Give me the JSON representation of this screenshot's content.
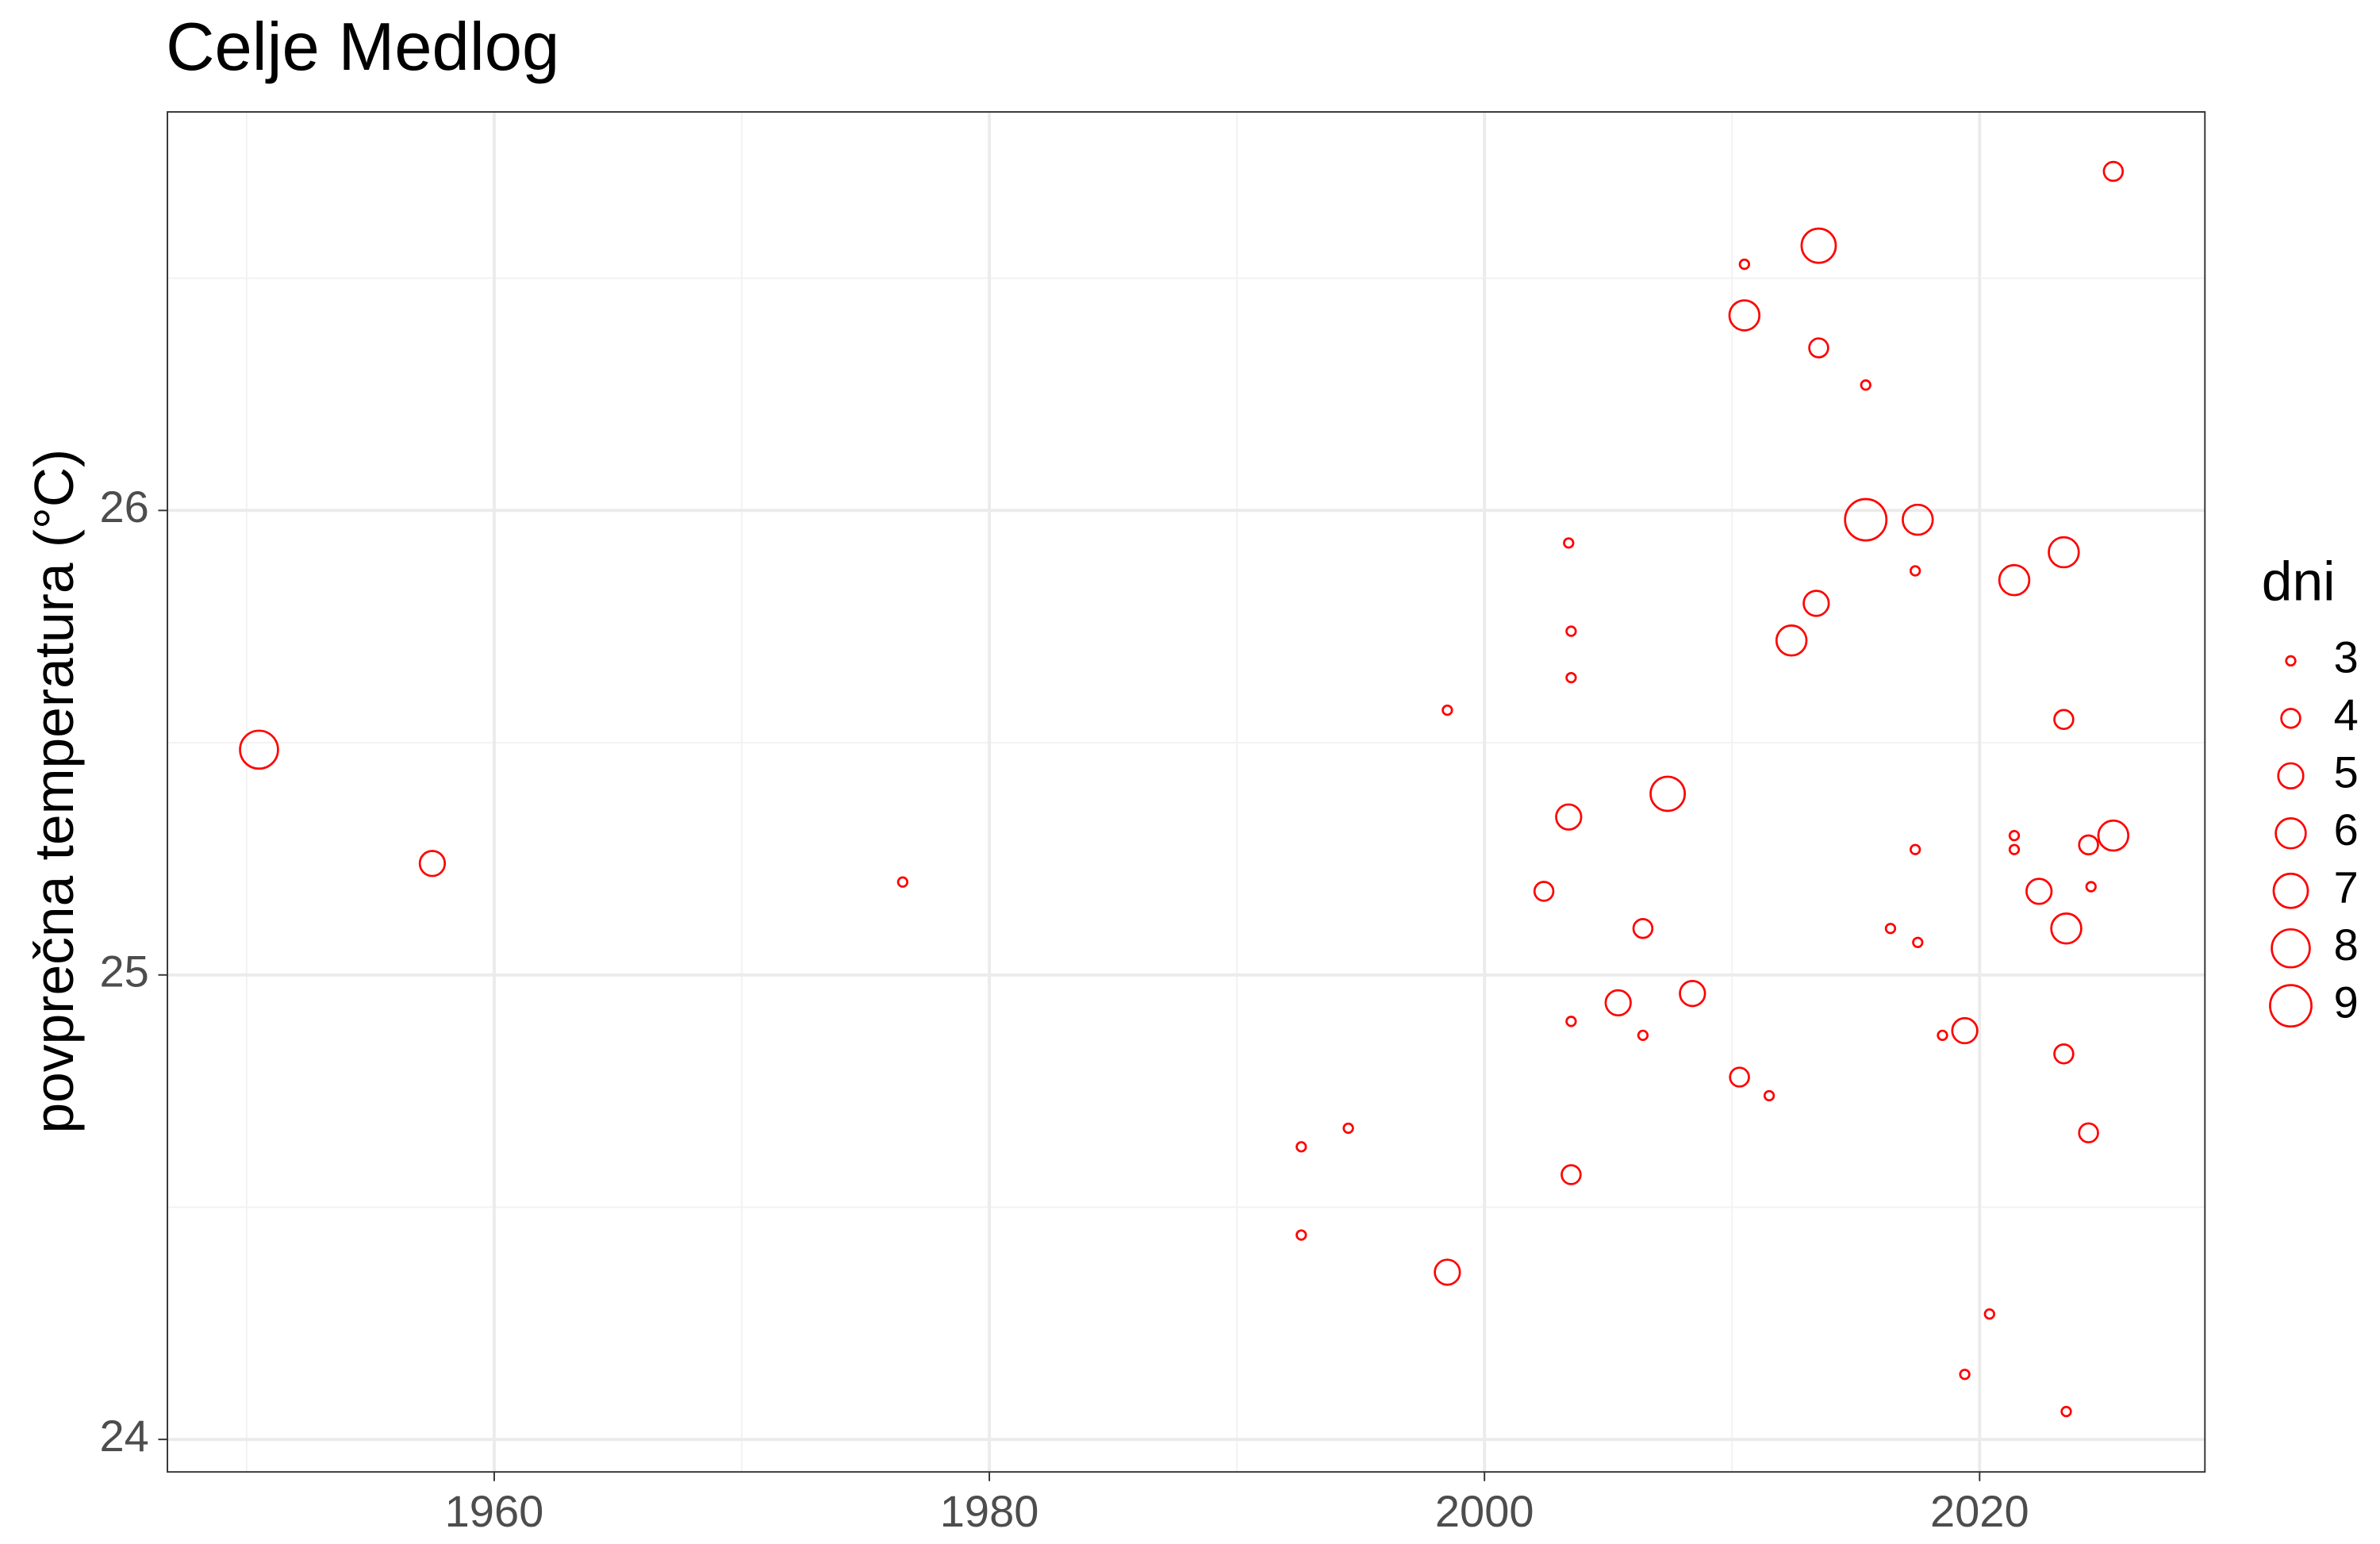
{
  "chart_data": {
    "type": "scatter",
    "title": "Celje Medlog",
    "ylabel": "povprečna temperatura (°C)",
    "legend_title": "dni",
    "color": "#ff0000",
    "grid": true,
    "legend": "right",
    "xlim": [
      1946.8,
      2029.1
    ],
    "ylim": [
      23.93,
      26.858
    ],
    "xticks": [
      1960,
      1980,
      2000,
      2020
    ],
    "yticks": [
      24,
      25,
      26
    ],
    "x_minor_ticks": [
      1950,
      1970,
      1990,
      2010
    ],
    "y_minor_ticks": [
      24.5,
      25.5,
      26.5
    ],
    "size_levels": [
      3,
      4,
      5,
      6,
      7,
      8,
      9
    ],
    "x": [
      1950.5,
      1957.5,
      1976.5,
      1992.6,
      1992.6,
      1994.5,
      1998.5,
      1998.5,
      2002.4,
      2003.4,
      2003.4,
      2003.5,
      2003.5,
      2003.5,
      2003.5,
      2005.4,
      2006.4,
      2006.4,
      2007.4,
      2008.4,
      2010.3,
      2010.5,
      2010.5,
      2011.5,
      2012.4,
      2013.4,
      2013.5,
      2013.5,
      2015.4,
      2015.4,
      2016.4,
      2017.4,
      2017.4,
      2017.5,
      2017.5,
      2018.5,
      2019.4,
      2019.4,
      2020.4,
      2021.4,
      2021.4,
      2021.4,
      2022.4,
      2023.4,
      2023.4,
      2023.4,
      2023.5,
      2023.5,
      2024.4,
      2024.4,
      2024.5,
      2025.4,
      2025.4
    ],
    "values": [
      25.485,
      25.24,
      25.2,
      24.63,
      24.44,
      24.67,
      25.57,
      24.36,
      25.18,
      25.34,
      25.93,
      25.74,
      25.64,
      24.9,
      24.57,
      24.94,
      25.1,
      24.87,
      25.39,
      24.96,
      24.78,
      26.53,
      26.42,
      24.74,
      25.72,
      25.8,
      26.57,
      26.35,
      26.27,
      25.98,
      25.1,
      25.87,
      25.27,
      25.07,
      25.98,
      24.87,
      24.88,
      24.14,
      24.27,
      25.85,
      25.3,
      25.27,
      25.18,
      25.91,
      25.55,
      24.83,
      24.06,
      25.1,
      24.66,
      25.28,
      25.19,
      25.3,
      26.73
    ],
    "sizes": [
      8,
      5,
      3,
      3,
      3,
      3,
      3,
      5,
      4,
      5,
      3,
      3,
      3,
      3,
      4,
      5,
      4,
      3,
      7,
      5,
      4,
      3,
      6,
      3,
      6,
      5,
      7,
      4,
      3,
      9,
      3,
      3,
      3,
      3,
      6,
      3,
      5,
      3,
      3,
      6,
      3,
      3,
      5,
      6,
      4,
      4,
      3,
      6,
      4,
      4,
      3,
      6,
      4
    ]
  }
}
